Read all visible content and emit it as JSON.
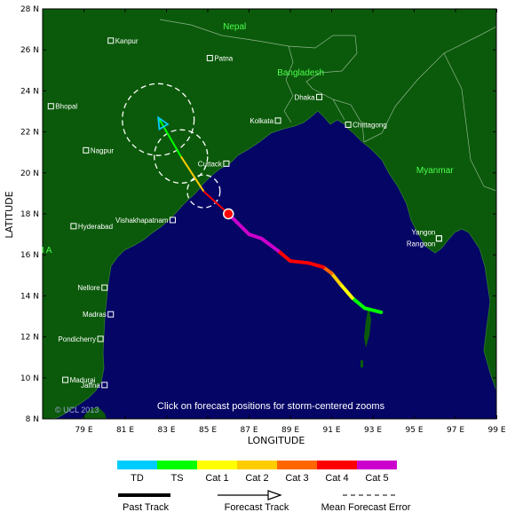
{
  "map": {
    "colors": {
      "ocean": "#050566",
      "land": "#0b5a0b",
      "border": "#8fb58f",
      "frame": "#000000"
    },
    "lon_ticks": [
      "79 E",
      "81 E",
      "83 E",
      "85 E",
      "87 E",
      "89 E",
      "91 E",
      "93 E",
      "95 E",
      "97 E",
      "99 E"
    ],
    "lat_ticks": [
      "8 N",
      "10 N",
      "12 N",
      "14 N",
      "16 N",
      "18 N",
      "20 N",
      "22 N",
      "24 N",
      "26 N",
      "28 N"
    ],
    "xlabel": "LONGITUDE",
    "ylabel": "LATITUDE",
    "countries": [
      {
        "name": "Nepal"
      },
      {
        "name": "Bangladesh"
      },
      {
        "name": "Myanmar"
      },
      {
        "name": "I A"
      }
    ],
    "cities": [
      {
        "name": "Kanpur"
      },
      {
        "name": "Patna"
      },
      {
        "name": "Bhopal"
      },
      {
        "name": "Dhaka"
      },
      {
        "name": "Kolkata"
      },
      {
        "name": "Chittagong"
      },
      {
        "name": "Nagpur"
      },
      {
        "name": "Cuttack"
      },
      {
        "name": "Vishakhapatnam"
      },
      {
        "name": "Hyderabad"
      },
      {
        "name": "Yangon"
      },
      {
        "name": "Rangoon"
      },
      {
        "name": "Nellore"
      },
      {
        "name": "Madras"
      },
      {
        "name": "Pondicherry"
      },
      {
        "name": "Madurai"
      },
      {
        "name": "Jaffna"
      }
    ],
    "info": "Click on forecast positions for storm-centered zooms",
    "copyright": "© UCL 2013"
  },
  "storm": {
    "past_track": [
      {
        "lon": 93.4,
        "lat": 13.2,
        "cat": "TS"
      },
      {
        "lon": 92.6,
        "lat": 13.4,
        "cat": "TS"
      },
      {
        "lon": 92.0,
        "lat": 13.9,
        "cat": "TS"
      },
      {
        "lon": 91.4,
        "lat": 14.6,
        "cat": "Cat 1"
      },
      {
        "lon": 91.0,
        "lat": 15.1,
        "cat": "Cat 2"
      },
      {
        "lon": 90.6,
        "lat": 15.4,
        "cat": "Cat 3"
      },
      {
        "lon": 89.9,
        "lat": 15.6,
        "cat": "Cat 4"
      },
      {
        "lon": 89.0,
        "lat": 15.7,
        "cat": "Cat 4"
      },
      {
        "lon": 88.4,
        "lat": 16.2,
        "cat": "Cat 4"
      },
      {
        "lon": 87.6,
        "lat": 16.8,
        "cat": "Cat 5"
      },
      {
        "lon": 87.0,
        "lat": 17.0,
        "cat": "Cat 5"
      },
      {
        "lon": 86.0,
        "lat": 18.0,
        "cat": "Cat 5"
      }
    ],
    "current": {
      "lon": 86.0,
      "lat": 18.0
    },
    "forecast_track": [
      {
        "lon": 86.0,
        "lat": 18.0,
        "cat": "Cat 4"
      },
      {
        "lon": 84.8,
        "lat": 19.1,
        "cat": "Cat 2"
      },
      {
        "lon": 83.7,
        "lat": 20.8,
        "cat": "TS"
      },
      {
        "lon": 82.6,
        "lat": 22.7,
        "cat": "TD"
      }
    ],
    "error_circles": [
      {
        "lon": 84.8,
        "lat": 19.1,
        "r_deg": 0.8
      },
      {
        "lon": 83.7,
        "lat": 20.8,
        "r_deg": 1.3
      },
      {
        "lon": 82.6,
        "lat": 22.6,
        "r_deg": 1.75
      }
    ]
  },
  "legend": {
    "categories": [
      {
        "label": "TD",
        "color": "#00ccff"
      },
      {
        "label": "TS",
        "color": "#00ff00"
      },
      {
        "label": "Cat 1",
        "color": "#ffff00"
      },
      {
        "label": "Cat 2",
        "color": "#ffcc00"
      },
      {
        "label": "Cat 3",
        "color": "#ff6600"
      },
      {
        "label": "Cat 4",
        "color": "#ff0000"
      },
      {
        "label": "Cat 5",
        "color": "#cc00cc"
      }
    ],
    "past_track_label": "Past Track",
    "forecast_track_label": "Forecast Track",
    "error_label": "Mean Forecast Error"
  }
}
